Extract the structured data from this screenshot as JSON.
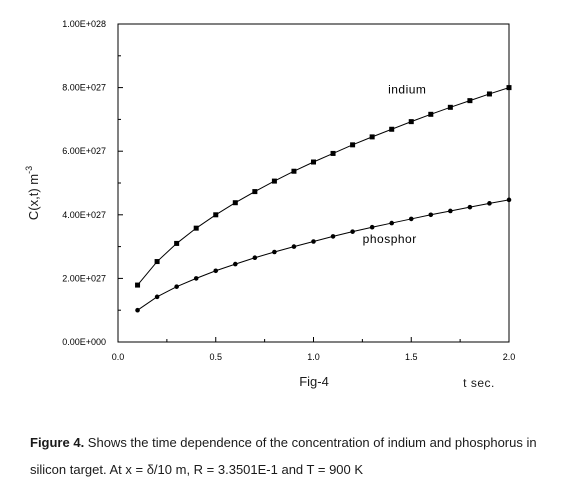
{
  "chart_data": {
    "type": "line",
    "xlabel": "t sec.",
    "ylabel": "C(x,t) m",
    "ylabel_sup": "-3",
    "figure_label": "Fig-4",
    "xlim": [
      0.0,
      2.0
    ],
    "ylim": [
      0.0,
      1e+28
    ],
    "x_ticks": [
      0.0,
      0.5,
      1.0,
      1.5,
      2.0
    ],
    "x_tick_labels": [
      "0.0",
      "0.5",
      "1.0",
      "1.5",
      "2.0"
    ],
    "y_ticks": [
      0,
      2e+27,
      4e+27,
      6e+27,
      8e+27,
      1e+28
    ],
    "y_tick_labels": [
      "0.00E+000",
      "2.00E+027",
      "4.00E+027",
      "6.00E+027",
      "8.00E+027",
      "1.00E+028"
    ],
    "grid": false,
    "legend": "none",
    "x": [
      0.1,
      0.2,
      0.3,
      0.4,
      0.5,
      0.6,
      0.7,
      0.8,
      0.9,
      1.0,
      1.1,
      1.2,
      1.3,
      1.4,
      1.5,
      1.6,
      1.7,
      1.8,
      1.9,
      2.0
    ],
    "series": [
      {
        "name": "indium",
        "marker": "square",
        "values": [
          1.79e+27,
          2.53e+27,
          3.1e+27,
          3.58e+27,
          4e+27,
          4.38e+27,
          4.73e+27,
          5.06e+27,
          5.37e+27,
          5.66e+27,
          5.93e+27,
          6.2e+27,
          6.45e+27,
          6.69e+27,
          6.93e+27,
          7.16e+27,
          7.38e+27,
          7.59e+27,
          7.8e+27,
          8e+27
        ]
      },
      {
        "name": "phosphor",
        "marker": "circle",
        "values": [
          1e+27,
          1.42e+27,
          1.74e+27,
          2e+27,
          2.24e+27,
          2.45e+27,
          2.65e+27,
          2.83e+27,
          3e+27,
          3.16e+27,
          3.32e+27,
          3.47e+27,
          3.61e+27,
          3.74e+27,
          3.87e+27,
          4e+27,
          4.12e+27,
          4.24e+27,
          4.36e+27,
          4.47e+27
        ]
      }
    ]
  },
  "caption": {
    "label": "Figure 4.",
    "text": " Shows the time dependence of the concentration of indium and phosphorus in silicon target. At x = δ/10 m, R = 3.3501E-1 and T = 900 K"
  }
}
